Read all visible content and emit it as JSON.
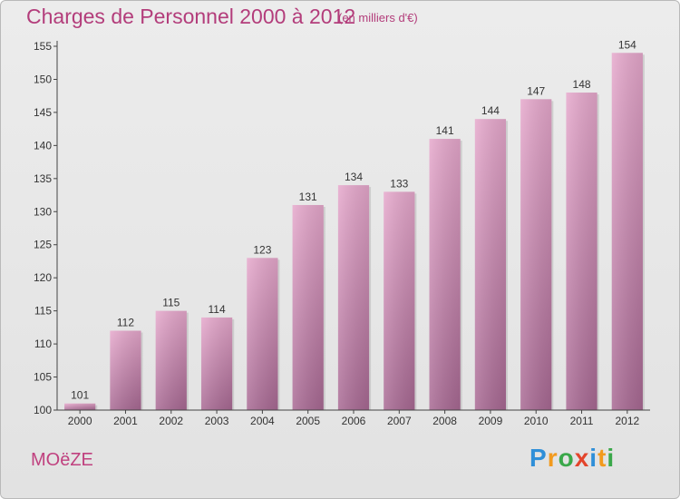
{
  "chart_data": {
    "type": "bar",
    "title": "Charges de Personnel 2000 à 2012",
    "subtitle": "(en milliers d'€)",
    "xlabel": "",
    "ylabel": "",
    "categories": [
      "2000",
      "2001",
      "2002",
      "2003",
      "2004",
      "2005",
      "2006",
      "2007",
      "2008",
      "2009",
      "2010",
      "2011",
      "2012"
    ],
    "values": [
      101,
      112,
      115,
      114,
      123,
      131,
      134,
      133,
      141,
      144,
      147,
      148,
      154
    ],
    "ylim": [
      100,
      155
    ],
    "yticks": [
      100,
      105,
      110,
      115,
      120,
      125,
      130,
      135,
      140,
      145,
      150,
      155
    ],
    "grid": false,
    "bar_color": "#d98cb8",
    "data_labels": true
  },
  "commune": "MOëZE",
  "logo": {
    "letters": [
      "P",
      "r",
      "o",
      "x",
      "i",
      "t",
      "i"
    ],
    "colors": [
      "#2f8fd8",
      "#f29a1d",
      "#3aa84a",
      "#e3452c",
      "#2f8fd8",
      "#f29a1d",
      "#3aa84a"
    ]
  }
}
